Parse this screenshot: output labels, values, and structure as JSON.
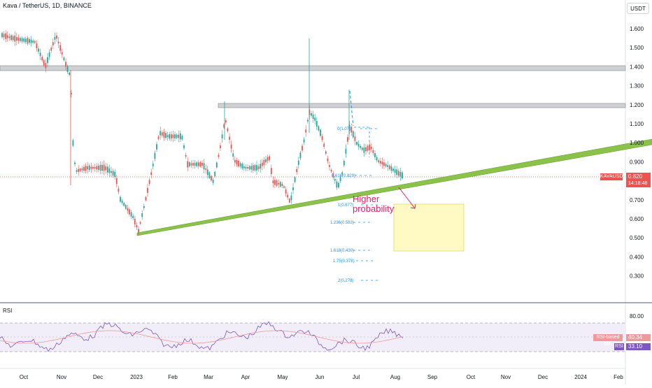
{
  "header": {
    "title": "Kava / TetherUS, 1D, BINANCE",
    "currency_button": "USDT"
  },
  "price_axis": {
    "ticks": [
      "1.600",
      "1.500",
      "1.400",
      "1.300",
      "1.200",
      "1.100",
      "1.000",
      "0.900",
      "0.800",
      "0.700",
      "0.600",
      "0.500",
      "0.400",
      "0.300"
    ],
    "current_symbol": "KAVAUSDT",
    "current_price": "0.820",
    "countdown": "14:18:48"
  },
  "time_axis": {
    "ticks": [
      "Oct",
      "Nov",
      "Dec",
      "2023",
      "Feb",
      "Mar",
      "Apr",
      "May",
      "Jun",
      "Jul",
      "Aug",
      "Sep",
      "Oct",
      "Nov",
      "Dec",
      "2024",
      "Feb"
    ]
  },
  "fib_levels": [
    "0(1.07)",
    "0.618(0.829)",
    "1(0.677)",
    "1.236(0.583)",
    "1.618(0.430)",
    "1.75(0.378)",
    "2(0.278)"
  ],
  "annotation": {
    "line1": "Higher",
    "line2": "probability"
  },
  "rsi_panel": {
    "label": "RSI",
    "axis_tick": "80.00",
    "ma_label": "RSI-based MA",
    "ma_value": "40.34",
    "rsi_tag": "RSI",
    "rsi_value": "33.10"
  },
  "colors": {
    "up": "#26a69a",
    "down": "#ef5350",
    "trendline": "#8bc34a",
    "zone": "#fff9c4",
    "fib": "#2196f3",
    "annotation": "#e91e63",
    "rsi_line": "#7e57c2",
    "rsi_ma": "#ef9a9a"
  }
}
